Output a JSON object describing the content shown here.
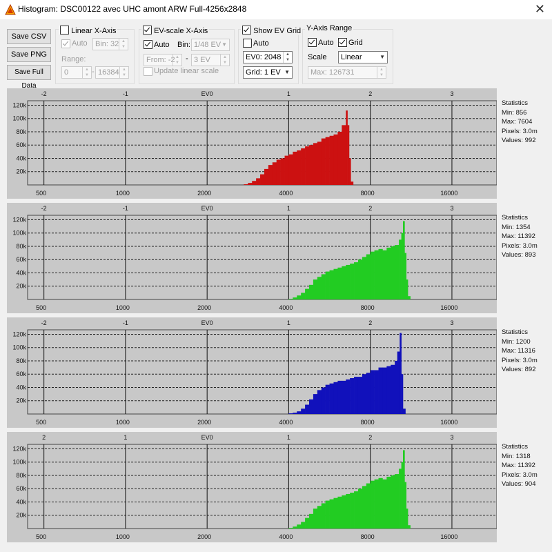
{
  "window": {
    "title": "Histogram: DSC00122 avec UHC amont ARW Full-4256x2848",
    "close_glyph": "✕"
  },
  "buttons": {
    "save_csv": "Save CSV",
    "save_png": "Save PNG",
    "save_full": "Save Full Data"
  },
  "linear": {
    "title": "Linear X-Axis",
    "checked": false,
    "auto_label": "Auto",
    "auto_checked": true,
    "bin_value": "Bin: 32",
    "range_label": "Range:",
    "range_from": "0",
    "range_to": "16384",
    "dash": "-"
  },
  "evscale": {
    "title": "EV-scale X-Axis",
    "checked": true,
    "auto_label": "Auto",
    "auto_checked": true,
    "bin_label": "Bin:",
    "bin_value": "1/48 EV",
    "from_value": "From: -2",
    "dash": "-",
    "to_value": "3 EV",
    "update_label": "Update linear scale",
    "update_checked": false
  },
  "evgrid": {
    "title": "Show EV Grid",
    "checked": true,
    "auto_label": "Auto",
    "auto_checked": false,
    "ev0_value": "EV0: 2048",
    "grid_value": "Grid: 1 EV"
  },
  "yrange": {
    "title": "Y-Axis Range",
    "auto_label": "Auto",
    "auto_checked": true,
    "grid_label": "Grid",
    "grid_checked": true,
    "scale_label": "Scale",
    "scale_value": "Linear",
    "max_value": "Max: 126731"
  },
  "axes": {
    "ev_ticks": [
      {
        "ev": -2,
        "label": "-2"
      },
      {
        "ev": -1,
        "label": "-1"
      },
      {
        "ev": 0,
        "label": "EV0"
      },
      {
        "ev": 1,
        "label": "1"
      },
      {
        "ev": 2,
        "label": "2"
      },
      {
        "ev": 3,
        "label": "3"
      }
    ],
    "ev_ticks_last": [
      {
        "ev": -2,
        "label": "2"
      },
      {
        "ev": -1,
        "label": "1"
      },
      {
        "ev": 0,
        "label": "EV0"
      },
      {
        "ev": 1,
        "label": "1"
      },
      {
        "ev": 2,
        "label": "2"
      },
      {
        "ev": 3,
        "label": "3"
      }
    ],
    "lin_ticks": [
      {
        "value": 500,
        "label": "500"
      },
      {
        "value": 1000,
        "label": "1000"
      },
      {
        "value": 2000,
        "label": "2000"
      },
      {
        "value": 4000,
        "label": "4000"
      },
      {
        "value": 8000,
        "label": "8000"
      },
      {
        "value": 16000,
        "label": "16000"
      }
    ],
    "y_ticks": [
      {
        "value": 20000,
        "label": "20k"
      },
      {
        "value": 40000,
        "label": "40k"
      },
      {
        "value": 60000,
        "label": "60k"
      },
      {
        "value": 80000,
        "label": "80k"
      },
      {
        "value": 100000,
        "label": "100k"
      },
      {
        "value": 120000,
        "label": "120k"
      }
    ],
    "y_max": 126731,
    "ev_min": -2.2,
    "ev_max": 3.55
  },
  "chart_data": [
    {
      "type": "bar",
      "channel": "red",
      "color": "#cc1111",
      "stats": {
        "title": "Statistics",
        "min": "Min: 856",
        "max": "Max: 7604",
        "pixels": "Pixels: 3.0m",
        "values": "Values: 992"
      },
      "x_ev": [
        0.45,
        0.5,
        0.55,
        0.6,
        0.65,
        0.7,
        0.75,
        0.8,
        0.85,
        0.9,
        0.95,
        1.0,
        1.05,
        1.1,
        1.15,
        1.2,
        1.25,
        1.3,
        1.35,
        1.4,
        1.45,
        1.5,
        1.55,
        1.6,
        1.65,
        1.7,
        1.72,
        1.74,
        1.76
      ],
      "values": [
        1000,
        3000,
        6000,
        10000,
        16000,
        24000,
        30000,
        34000,
        38000,
        40000,
        44000,
        46000,
        50000,
        52000,
        55000,
        58000,
        60000,
        63000,
        65000,
        70000,
        72000,
        74000,
        76000,
        80000,
        90000,
        112000,
        90000,
        40000,
        5000
      ]
    },
    {
      "type": "bar",
      "channel": "green1",
      "color": "#22cc22",
      "stats": {
        "title": "Statistics",
        "min": "Min: 1354",
        "max": "Max: 11392",
        "pixels": "Pixels: 3.0m",
        "values": "Values: 893"
      },
      "x_ev": [
        1.0,
        1.05,
        1.1,
        1.15,
        1.2,
        1.25,
        1.3,
        1.35,
        1.4,
        1.45,
        1.5,
        1.55,
        1.6,
        1.65,
        1.7,
        1.75,
        1.8,
        1.85,
        1.9,
        1.95,
        2.0,
        2.05,
        2.1,
        2.15,
        2.2,
        2.25,
        2.3,
        2.35,
        2.38,
        2.4,
        2.42,
        2.44,
        2.46
      ],
      "values": [
        1000,
        3000,
        6000,
        10000,
        16000,
        22000,
        30000,
        34000,
        38000,
        42000,
        44000,
        46000,
        48000,
        50000,
        52000,
        54000,
        56000,
        60000,
        64000,
        68000,
        72000,
        74000,
        76000,
        74000,
        78000,
        80000,
        82000,
        90000,
        100000,
        118000,
        70000,
        30000,
        5000
      ]
    },
    {
      "type": "bar",
      "channel": "blue",
      "color": "#1111bb",
      "stats": {
        "title": "Statistics",
        "min": "Min: 1200",
        "max": "Max: 11316",
        "pixels": "Pixels: 3.0m",
        "values": "Values: 892"
      },
      "x_ev": [
        1.0,
        1.05,
        1.1,
        1.15,
        1.2,
        1.25,
        1.3,
        1.35,
        1.4,
        1.45,
        1.5,
        1.55,
        1.6,
        1.65,
        1.7,
        1.75,
        1.8,
        1.85,
        1.9,
        1.95,
        2.0,
        2.05,
        2.1,
        2.15,
        2.2,
        2.25,
        2.3,
        2.33,
        2.36,
        2.38,
        2.4
      ],
      "values": [
        1000,
        2000,
        4000,
        8000,
        14000,
        22000,
        30000,
        36000,
        40000,
        44000,
        46000,
        48000,
        50000,
        50000,
        52000,
        54000,
        56000,
        56000,
        60000,
        62000,
        66000,
        66000,
        70000,
        70000,
        72000,
        74000,
        80000,
        94000,
        122000,
        60000,
        8000
      ]
    },
    {
      "type": "bar",
      "channel": "green2",
      "color": "#22cc22",
      "stats": {
        "title": "Statistics",
        "min": "Min: 1318",
        "max": "Max: 11392",
        "pixels": "Pixels: 3.0m",
        "values": "Values: 904"
      },
      "x_ev": [
        1.0,
        1.05,
        1.1,
        1.15,
        1.2,
        1.25,
        1.3,
        1.35,
        1.4,
        1.45,
        1.5,
        1.55,
        1.6,
        1.65,
        1.7,
        1.75,
        1.8,
        1.85,
        1.9,
        1.95,
        2.0,
        2.05,
        2.1,
        2.15,
        2.2,
        2.25,
        2.3,
        2.35,
        2.38,
        2.4,
        2.42,
        2.44,
        2.46
      ],
      "values": [
        1000,
        3000,
        6000,
        10000,
        16000,
        22000,
        30000,
        34000,
        38000,
        42000,
        44000,
        46000,
        48000,
        50000,
        52000,
        54000,
        56000,
        60000,
        64000,
        68000,
        72000,
        74000,
        76000,
        74000,
        78000,
        80000,
        82000,
        90000,
        100000,
        118000,
        70000,
        30000,
        5000
      ]
    }
  ]
}
